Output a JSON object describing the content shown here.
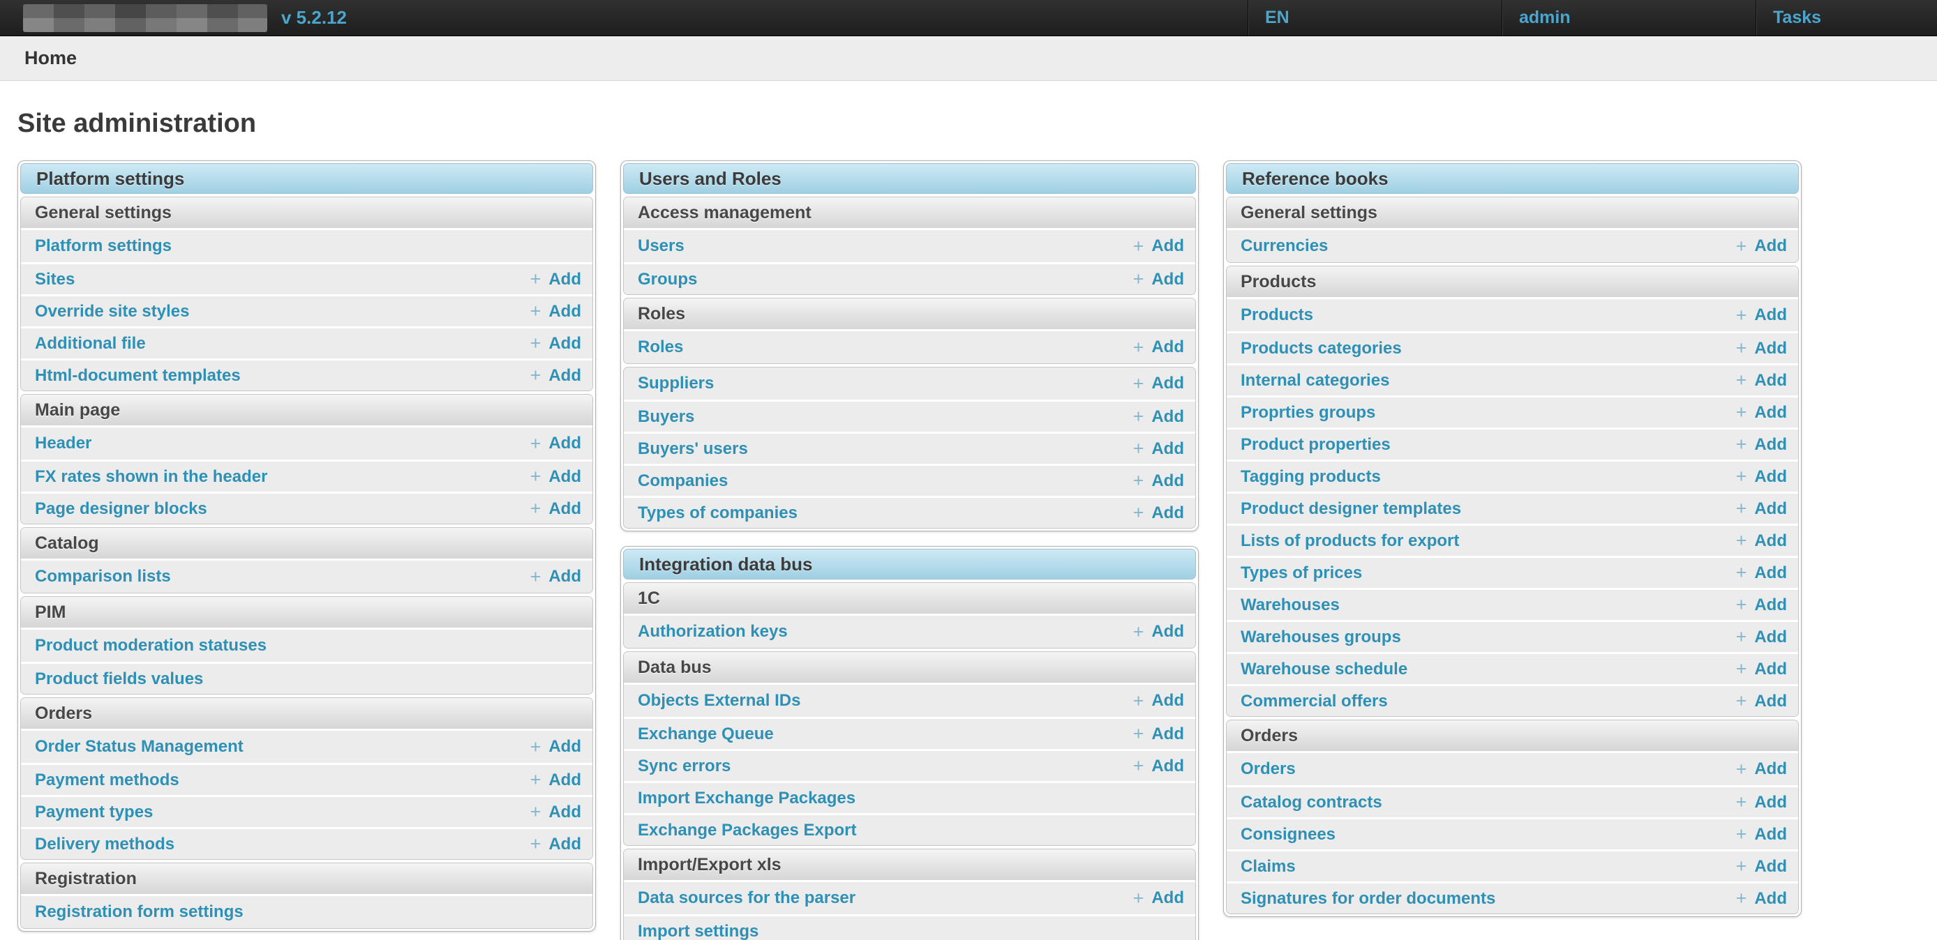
{
  "topbar": {
    "version": "v 5.2.12",
    "nav": [
      {
        "label": "EN"
      },
      {
        "label": "admin"
      },
      {
        "label": "Tasks"
      }
    ]
  },
  "breadcrumb": {
    "items": [
      {
        "label": "Home"
      }
    ]
  },
  "page": {
    "title": "Site administration"
  },
  "labels": {
    "add": "Add",
    "plus": "+"
  },
  "colors": {
    "accent_blue": "#4ba6cd",
    "link_teal": "#2e90b5",
    "caption_top": "#cee9f4",
    "caption_bottom": "#9fd0e3",
    "row_bg": "#ececec",
    "topbar_bg": "#262626"
  },
  "columns": [
    {
      "modules": [
        {
          "caption": "Platform settings",
          "sections": [
            {
              "header": "General settings",
              "rows": [
                {
                  "label": "Platform settings",
                  "add": false
                },
                {
                  "label": "Sites",
                  "add": true
                },
                {
                  "label": "Override site styles",
                  "add": true
                },
                {
                  "label": "Additional file",
                  "add": true
                },
                {
                  "label": "Html-document templates",
                  "add": true
                }
              ]
            },
            {
              "header": "Main page",
              "rows": [
                {
                  "label": "Header",
                  "add": true
                },
                {
                  "label": "FX rates shown in the header",
                  "add": true
                },
                {
                  "label": "Page designer blocks",
                  "add": true
                }
              ]
            },
            {
              "header": "Catalog",
              "rows": [
                {
                  "label": "Comparison lists",
                  "add": true
                }
              ]
            },
            {
              "header": "PIM",
              "rows": [
                {
                  "label": "Product moderation statuses",
                  "add": false
                },
                {
                  "label": "Product fields values",
                  "add": false
                }
              ]
            },
            {
              "header": "Orders",
              "rows": [
                {
                  "label": "Order Status Management",
                  "add": true
                },
                {
                  "label": "Payment methods",
                  "add": true
                },
                {
                  "label": "Payment types",
                  "add": true
                },
                {
                  "label": "Delivery methods",
                  "add": true
                }
              ]
            },
            {
              "header": "Registration",
              "rows": [
                {
                  "label": "Registration form settings",
                  "add": false
                }
              ]
            }
          ]
        }
      ]
    },
    {
      "modules": [
        {
          "caption": "Users and Roles",
          "sections": [
            {
              "header": "Access management",
              "rows": [
                {
                  "label": "Users",
                  "add": true
                },
                {
                  "label": "Groups",
                  "add": true
                }
              ]
            },
            {
              "header": "Roles",
              "rows": [
                {
                  "label": "Roles",
                  "add": true
                }
              ]
            },
            {
              "header": null,
              "rows": [
                {
                  "label": "Suppliers",
                  "add": true
                },
                {
                  "label": "Buyers",
                  "add": true
                },
                {
                  "label": "Buyers' users",
                  "add": true
                },
                {
                  "label": "Companies",
                  "add": true
                },
                {
                  "label": "Types of companies",
                  "add": true
                }
              ]
            }
          ]
        },
        {
          "caption": "Integration data bus",
          "sections": [
            {
              "header": "1C",
              "rows": [
                {
                  "label": "Authorization keys",
                  "add": true
                }
              ]
            },
            {
              "header": "Data bus",
              "rows": [
                {
                  "label": "Objects External IDs",
                  "add": true
                },
                {
                  "label": "Exchange Queue",
                  "add": true
                },
                {
                  "label": "Sync errors",
                  "add": true
                },
                {
                  "label": "Import Exchange Packages",
                  "add": false
                },
                {
                  "label": "Exchange Packages Export",
                  "add": false
                }
              ]
            },
            {
              "header": "Import/Export xls",
              "rows": [
                {
                  "label": "Data sources for the parser",
                  "add": true
                },
                {
                  "label": "Import settings",
                  "add": false
                }
              ]
            }
          ]
        }
      ]
    },
    {
      "modules": [
        {
          "caption": "Reference books",
          "sections": [
            {
              "header": "General settings",
              "rows": [
                {
                  "label": "Currencies",
                  "add": true
                }
              ]
            },
            {
              "header": "Products",
              "rows": [
                {
                  "label": "Products",
                  "add": true
                },
                {
                  "label": "Products categories",
                  "add": true
                },
                {
                  "label": "Internal categories",
                  "add": true
                },
                {
                  "label": "Proprties groups",
                  "add": true
                },
                {
                  "label": "Product properties",
                  "add": true
                },
                {
                  "label": "Tagging products",
                  "add": true
                },
                {
                  "label": "Product designer templates",
                  "add": true
                },
                {
                  "label": "Lists of products for export",
                  "add": true
                },
                {
                  "label": "Types of prices",
                  "add": true
                },
                {
                  "label": "Warehouses",
                  "add": true
                },
                {
                  "label": "Warehouses groups",
                  "add": true
                },
                {
                  "label": "Warehouse schedule",
                  "add": true
                },
                {
                  "label": "Commercial offers",
                  "add": true
                }
              ]
            },
            {
              "header": "Orders",
              "rows": [
                {
                  "label": "Orders",
                  "add": true
                },
                {
                  "label": "Catalog contracts",
                  "add": true
                },
                {
                  "label": "Consignees",
                  "add": true
                },
                {
                  "label": "Claims",
                  "add": true
                },
                {
                  "label": "Signatures for order documents",
                  "add": true
                }
              ]
            }
          ]
        }
      ]
    }
  ]
}
